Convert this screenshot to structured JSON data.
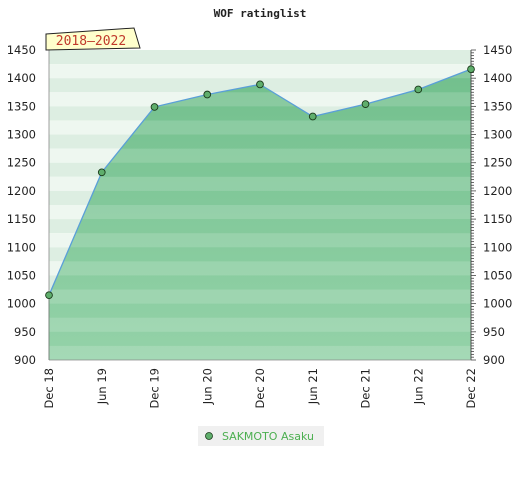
{
  "chart_data": {
    "type": "area",
    "title": "WOF ratinglist",
    "period_badge": "2018–2022",
    "xlabel": "",
    "ylabel": "",
    "x": [
      "Dec 18",
      "Jun 19",
      "Dec 19",
      "Jun 20",
      "Dec 20",
      "Jun 21",
      "Dec 21",
      "Jun 22",
      "Dec 22"
    ],
    "series": [
      {
        "name": "SAKMOTO Asaku",
        "values": [
          1015,
          1233,
          1349,
          1371,
          1389,
          1332,
          1354,
          1380,
          1416
        ]
      }
    ],
    "ylim": [
      900,
      1450
    ],
    "yticks": [
      900,
      950,
      1000,
      1050,
      1100,
      1150,
      1200,
      1250,
      1300,
      1350,
      1400,
      1450
    ],
    "grid": true,
    "legend_position": "bottom-center",
    "colors": {
      "line": "#5a9fd8",
      "fill": "#6dbf8a",
      "marker": "#5fae6c",
      "legend_text": "#4caf50",
      "badge_bg": "#ffffcc"
    }
  }
}
